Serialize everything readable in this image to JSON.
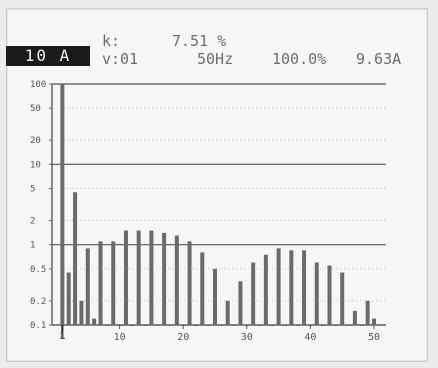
{
  "header": {
    "range": "10 A",
    "thd_label": "k:",
    "thd_value": "7.51 %",
    "harmonic_label": "v:01",
    "frequency": "50Hz",
    "percent": "100.0%",
    "current": "9.63A"
  },
  "chart_data": {
    "type": "bar",
    "title": "",
    "xlabel": "",
    "ylabel": "",
    "x": [
      1,
      2,
      3,
      4,
      5,
      6,
      7,
      8,
      9,
      10,
      11,
      12,
      13,
      14,
      15,
      16,
      17,
      18,
      19,
      20,
      21,
      22,
      23,
      24,
      25,
      26,
      27,
      28,
      29,
      30,
      31,
      32,
      33,
      34,
      35,
      36,
      37,
      38,
      39,
      40,
      41,
      42,
      43,
      44,
      45,
      46,
      47,
      48,
      49,
      50
    ],
    "values": [
      100,
      0.45,
      4.5,
      0.2,
      0.9,
      0.12,
      1.1,
      0.1,
      1.1,
      0.1,
      1.5,
      0.1,
      1.5,
      0.1,
      1.5,
      0.1,
      1.4,
      0.1,
      1.3,
      0.1,
      1.1,
      0.1,
      0.8,
      0.1,
      0.5,
      0.1,
      0.2,
      0.1,
      0.35,
      0.1,
      0.6,
      0.1,
      0.75,
      0.1,
      0.9,
      0.1,
      0.85,
      0.1,
      0.85,
      0.1,
      0.6,
      0.1,
      0.55,
      0.1,
      0.45,
      0.1,
      0.15,
      0.1,
      0.2,
      0.12
    ],
    "y_scale": "log",
    "ylim": [
      0.1,
      100
    ],
    "y_ticks": [
      100,
      50,
      20,
      10,
      5,
      2,
      1,
      0.5,
      0.2,
      0.1
    ],
    "y_tick_labels": [
      "100",
      "50",
      "20",
      "10",
      "5",
      "2",
      "1",
      "0.5",
      "0.2",
      "0.1"
    ],
    "reference_lines": [
      100,
      10,
      1
    ],
    "xlim": [
      0,
      50
    ],
    "x_ticks": [
      10,
      20,
      30,
      40,
      50
    ],
    "x_tick_labels": [
      "10",
      "20",
      "30",
      "40",
      "50"
    ],
    "cursor": 1,
    "cursor_label": "1",
    "grid": true,
    "color": "#6a6a6a"
  }
}
